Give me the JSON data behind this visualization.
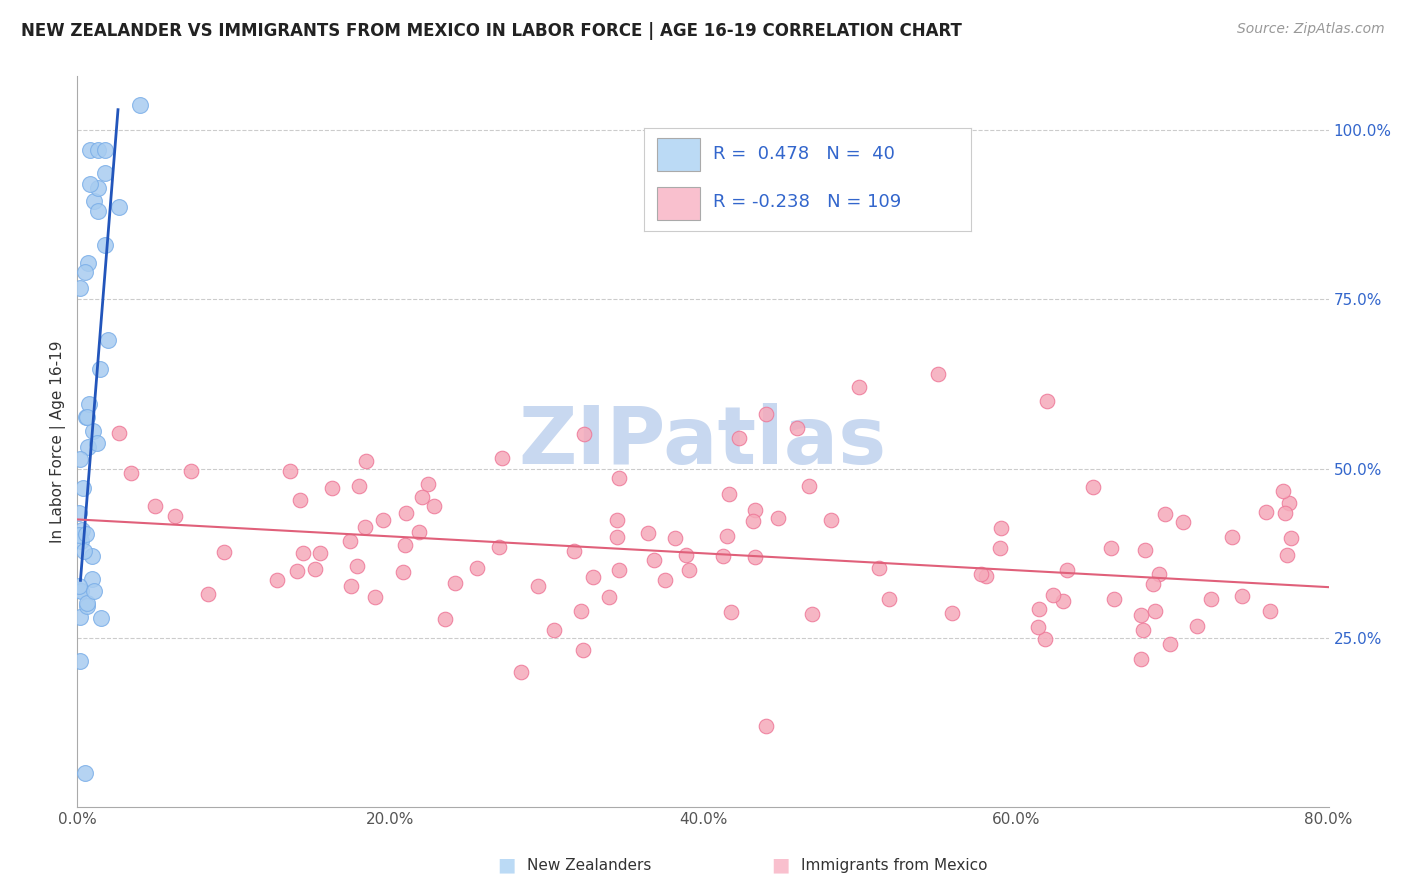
{
  "title": "NEW ZEALANDER VS IMMIGRANTS FROM MEXICO IN LABOR FORCE | AGE 16-19 CORRELATION CHART",
  "source_text": "Source: ZipAtlas.com",
  "ylabel": "In Labor Force | Age 16-19",
  "xlim": [
    0.0,
    0.8
  ],
  "ylim": [
    0.0,
    1.08
  ],
  "xtick_labels": [
    "0.0%",
    "20.0%",
    "40.0%",
    "60.0%",
    "80.0%"
  ],
  "xtick_vals": [
    0.0,
    0.2,
    0.4,
    0.6,
    0.8
  ],
  "ytick_right_labels": [
    "25.0%",
    "50.0%",
    "75.0%",
    "100.0%"
  ],
  "ytick_right_vals": [
    0.25,
    0.5,
    0.75,
    1.0
  ],
  "R_nz": 0.478,
  "N_nz": 40,
  "R_mx": -0.238,
  "N_mx": 109,
  "color_nz": "#A8CCF0",
  "color_nz_edge": "#7AAEE8",
  "color_mx": "#F5AABA",
  "color_mx_edge": "#EE7898",
  "line_color_nz": "#2255BB",
  "line_color_mx": "#E0607A",
  "legend_box_color_nz": "#BBDAF5",
  "legend_box_color_mx": "#F9C0CE",
  "legend_text_color": "#3366CC",
  "watermark": "ZIPatlas",
  "watermark_color": "#C8D8F0",
  "bg_color": "#FFFFFF",
  "grid_color": "#CCCCCC",
  "nz_line_x0": 0.002,
  "nz_line_y0": 0.335,
  "nz_line_x1": 0.026,
  "nz_line_y1": 1.03,
  "mx_line_x0": 0.0,
  "mx_line_y0": 0.425,
  "mx_line_x1": 0.8,
  "mx_line_y1": 0.325
}
